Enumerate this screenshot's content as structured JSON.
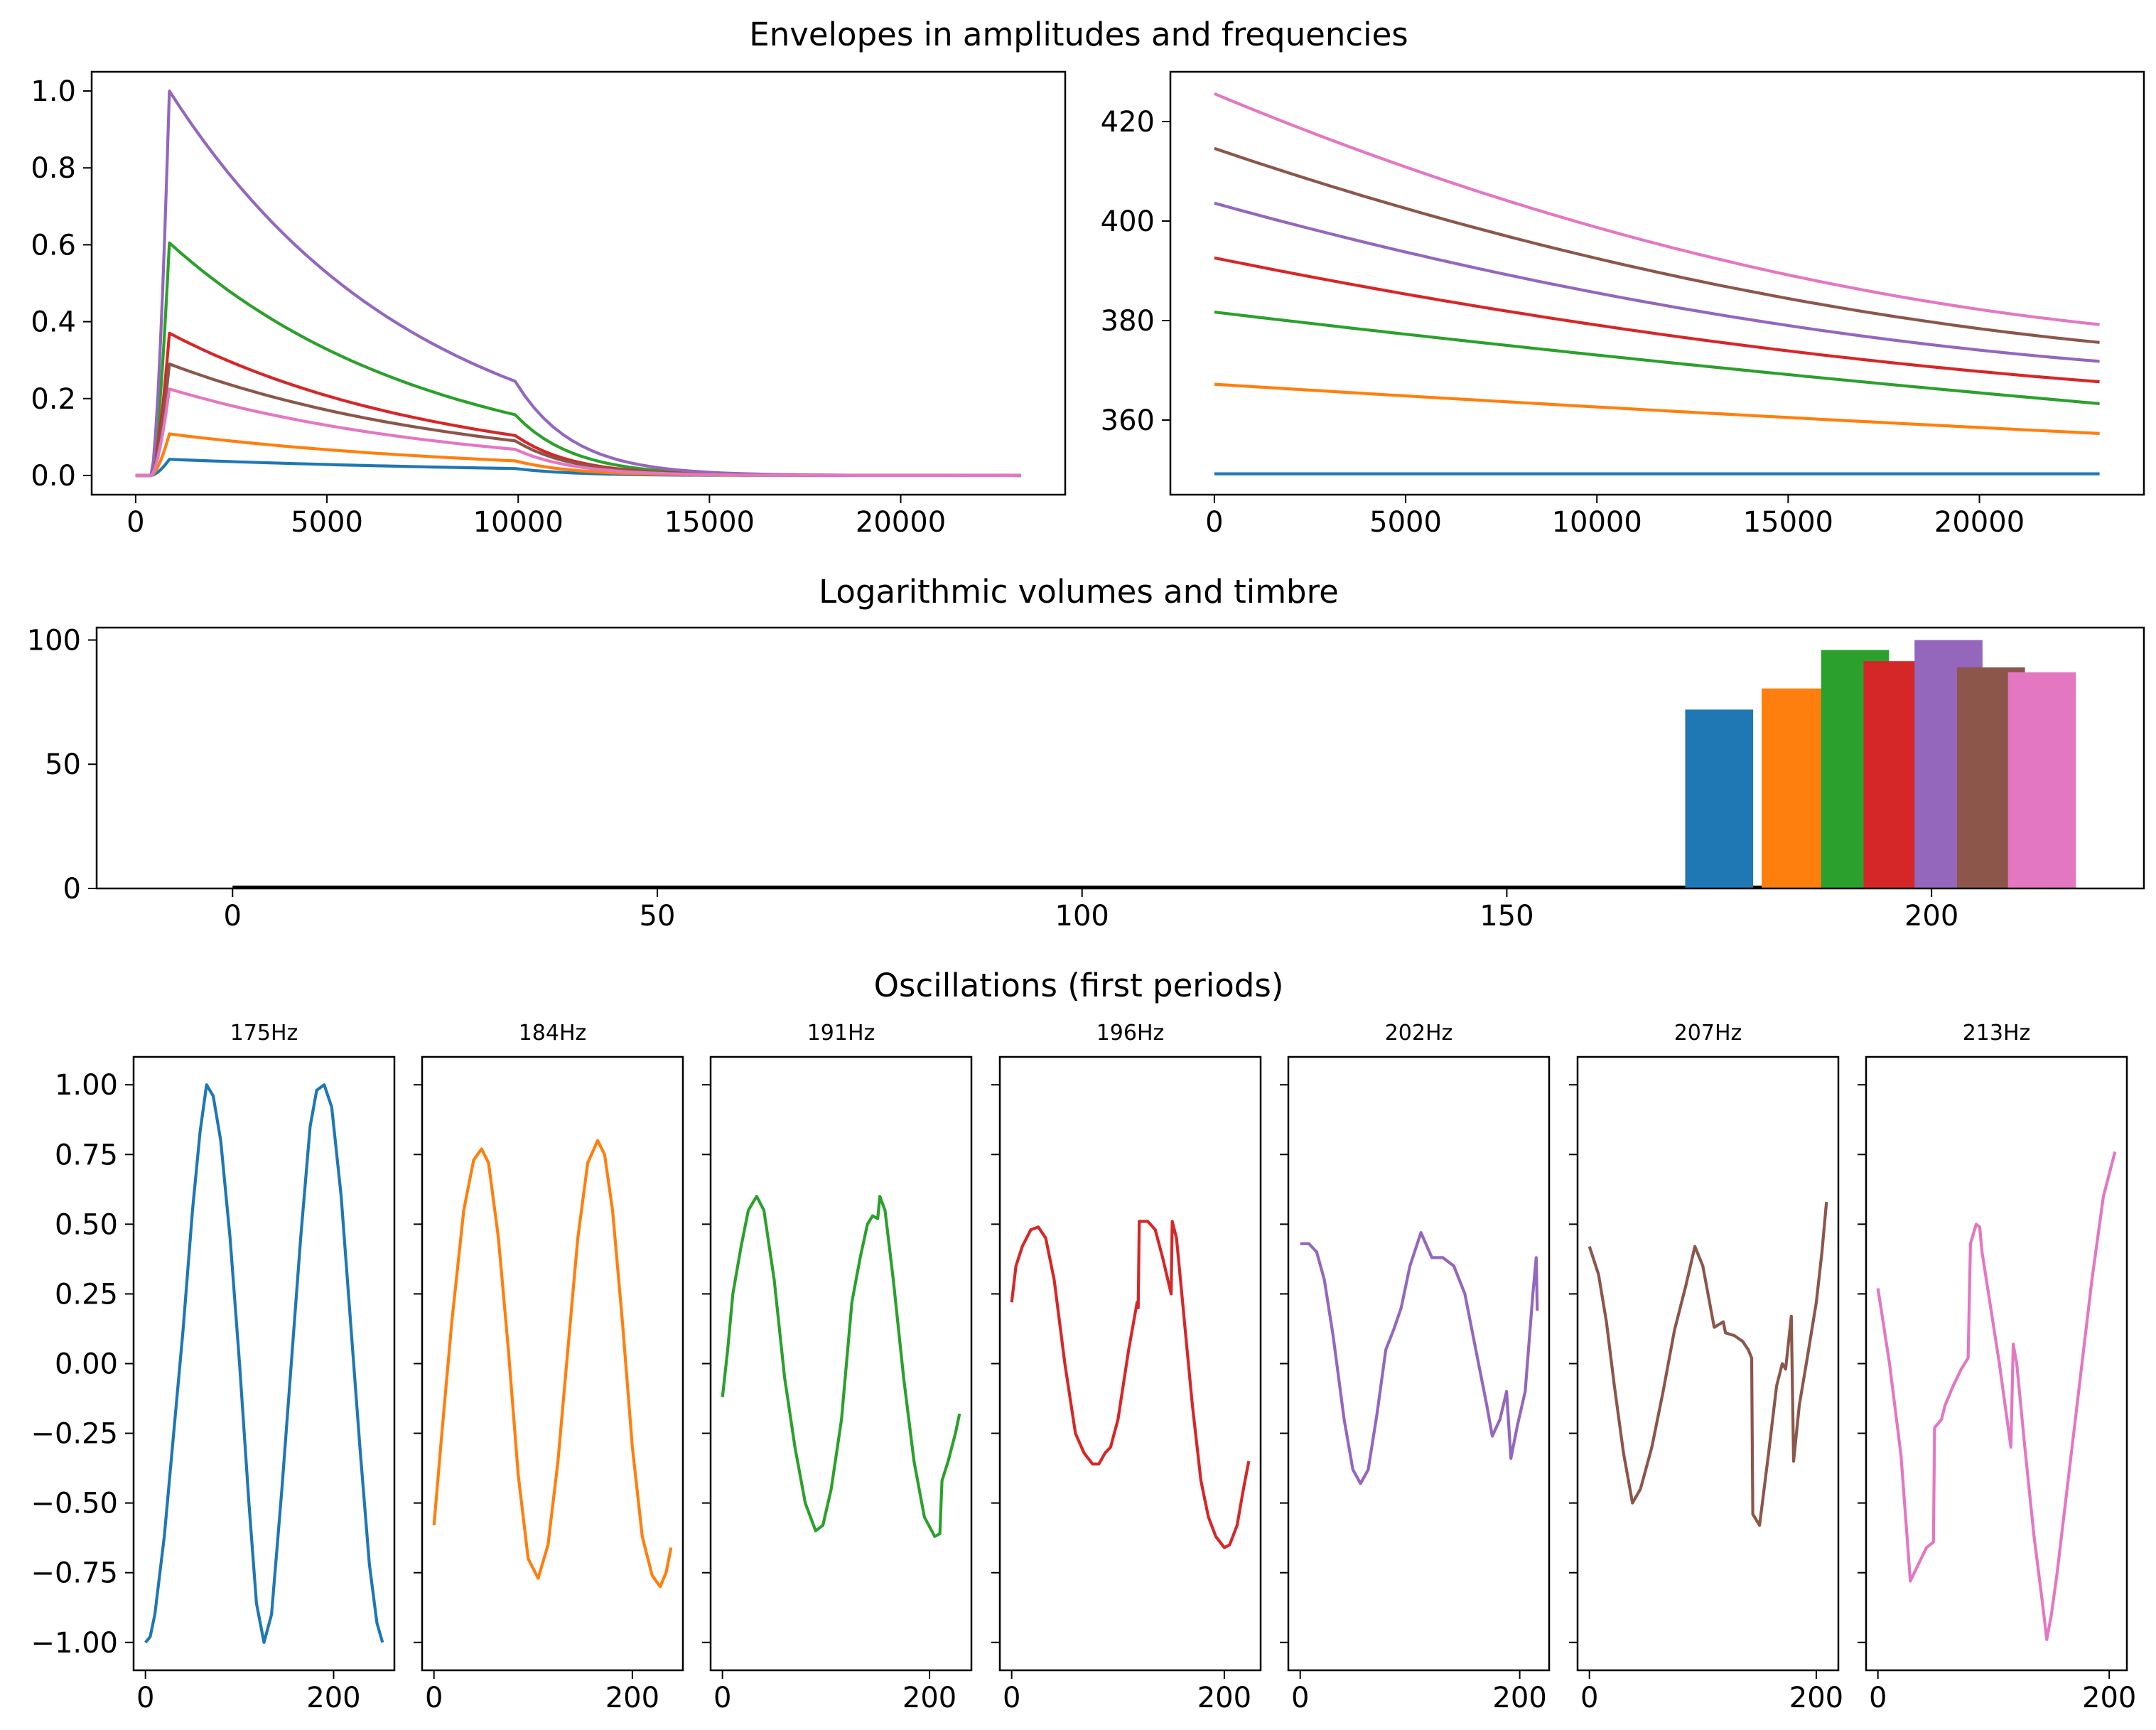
{
  "colors": [
    "#1f77b4",
    "#ff7f0e",
    "#2ca02c",
    "#d62728",
    "#9467bd",
    "#8c564b",
    "#e377c2"
  ],
  "titles": {
    "envelopes": "Envelopes in amplitudes and frequencies",
    "volumes": "Logarithmic volumes and timbre",
    "oscillations": "Oscillations (first periods)"
  },
  "chart_data": [
    {
      "id": "amplitude_envelopes",
      "type": "line",
      "xlim": [
        -1150,
        24300
      ],
      "ylim": [
        -0.05,
        1.05
      ],
      "xticks": [
        0,
        5000,
        10000,
        15000,
        20000
      ],
      "yticks": [
        0.0,
        0.2,
        0.4,
        0.6,
        0.8,
        1.0
      ],
      "ytick_labels": [
        "0.0",
        "0.2",
        "0.4",
        "0.6",
        "0.8",
        "1.0"
      ],
      "attack_start": 400,
      "attack_end": 882,
      "release_start": 9920,
      "x_end": 23140,
      "peaks": [
        0.042,
        0.108,
        0.605,
        0.37,
        1.0,
        0.29,
        0.225
      ],
      "release_levels": [
        0.018,
        0.038,
        0.158,
        0.104,
        0.245,
        0.09,
        0.068
      ]
    },
    {
      "id": "frequency_envelopes",
      "type": "line",
      "xlim": [
        -1150,
        24300
      ],
      "ylim": [
        345,
        430
      ],
      "xticks": [
        0,
        5000,
        10000,
        15000,
        20000
      ],
      "yticks": [
        360,
        380,
        400,
        420
      ],
      "x_end": 23140,
      "series_start": [
        349.2,
        367.2,
        381.7,
        392.6,
        403.6,
        414.6,
        425.6
      ],
      "series_end": [
        349.2,
        357.3,
        363.3,
        367.7,
        371.8,
        375.6,
        379.2
      ],
      "curvature": [
        0,
        0.12,
        0.15,
        0.45,
        0.55,
        0.55,
        0.6
      ]
    },
    {
      "id": "log_volumes",
      "type": "bar",
      "xlim": [
        -16,
        225
      ],
      "ylim": [
        0,
        105
      ],
      "xticks": [
        0,
        50,
        100,
        150,
        200
      ],
      "yticks": [
        0,
        50,
        100
      ],
      "categories": [
        175,
        184,
        191,
        196,
        202,
        207,
        213
      ],
      "values": [
        72,
        80.5,
        96,
        91.5,
        100,
        89,
        87
      ],
      "width": 8
    },
    {
      "id": "oscillations",
      "type": "line",
      "ylim": [
        -1.1,
        1.1
      ],
      "yticks": [
        -1.0,
        -0.75,
        -0.5,
        -0.25,
        0.0,
        0.25,
        0.5,
        0.75,
        1.0
      ],
      "ytick_labels": [
        "−1.00",
        "−0.75",
        "−0.50",
        "−0.25",
        "0.00",
        "0.25",
        "0.50",
        "0.75",
        "1.00"
      ],
      "xticks": [
        0,
        200
      ],
      "panels": [
        {
          "title": "175Hz",
          "xmax": 252,
          "points": [
            [
              0,
              -1.0
            ],
            [
              5,
              -0.98
            ],
            [
              10,
              -0.9
            ],
            [
              20,
              -0.62
            ],
            [
              30,
              -0.25
            ],
            [
              40,
              0.12
            ],
            [
              50,
              0.55
            ],
            [
              58,
              0.83
            ],
            [
              65,
              1.0
            ],
            [
              72,
              0.96
            ],
            [
              80,
              0.8
            ],
            [
              90,
              0.45
            ],
            [
              100,
              0.0
            ],
            [
              110,
              -0.5
            ],
            [
              118,
              -0.86
            ],
            [
              126,
              -1.0
            ],
            [
              134,
              -0.9
            ],
            [
              145,
              -0.45
            ],
            [
              155,
              0.0
            ],
            [
              165,
              0.45
            ],
            [
              175,
              0.85
            ],
            [
              182,
              0.98
            ],
            [
              190,
              1.0
            ],
            [
              198,
              0.92
            ],
            [
              208,
              0.6
            ],
            [
              218,
              0.15
            ],
            [
              228,
              -0.3
            ],
            [
              238,
              -0.72
            ],
            [
              246,
              -0.93
            ],
            [
              252,
              -1.0
            ]
          ]
        },
        {
          "title": "184Hz",
          "xmax": 239,
          "points": [
            [
              0,
              -0.58
            ],
            [
              8,
              -0.25
            ],
            [
              18,
              0.15
            ],
            [
              30,
              0.55
            ],
            [
              40,
              0.73
            ],
            [
              48,
              0.77
            ],
            [
              55,
              0.72
            ],
            [
              65,
              0.45
            ],
            [
              75,
              0.05
            ],
            [
              85,
              -0.4
            ],
            [
              95,
              -0.7
            ],
            [
              105,
              -0.77
            ],
            [
              115,
              -0.65
            ],
            [
              125,
              -0.35
            ],
            [
              135,
              0.05
            ],
            [
              145,
              0.45
            ],
            [
              155,
              0.72
            ],
            [
              165,
              0.8
            ],
            [
              172,
              0.75
            ],
            [
              180,
              0.55
            ],
            [
              190,
              0.15
            ],
            [
              200,
              -0.3
            ],
            [
              210,
              -0.62
            ],
            [
              220,
              -0.76
            ],
            [
              228,
              -0.8
            ],
            [
              234,
              -0.75
            ],
            [
              239,
              -0.66
            ]
          ]
        },
        {
          "title": "191Hz",
          "xmax": 229,
          "points": [
            [
              0,
              -0.12
            ],
            [
              5,
              0.05
            ],
            [
              10,
              0.25
            ],
            [
              18,
              0.42
            ],
            [
              25,
              0.55
            ],
            [
              33,
              0.6
            ],
            [
              40,
              0.55
            ],
            [
              50,
              0.3
            ],
            [
              60,
              -0.05
            ],
            [
              70,
              -0.3
            ],
            [
              80,
              -0.5
            ],
            [
              90,
              -0.6
            ],
            [
              97,
              -0.58
            ],
            [
              105,
              -0.45
            ],
            [
              115,
              -0.2
            ],
            [
              125,
              0.22
            ],
            [
              133,
              0.38
            ],
            [
              140,
              0.5
            ],
            [
              145,
              0.53
            ],
            [
              150,
              0.52
            ],
            [
              152,
              0.6
            ],
            [
              157,
              0.55
            ],
            [
              165,
              0.3
            ],
            [
              175,
              -0.05
            ],
            [
              185,
              -0.35
            ],
            [
              195,
              -0.55
            ],
            [
              205,
              -0.62
            ],
            [
              210,
              -0.61
            ],
            [
              212,
              -0.42
            ],
            [
              218,
              -0.35
            ],
            [
              225,
              -0.25
            ],
            [
              229,
              -0.18
            ]
          ]
        },
        {
          "title": "196Hz",
          "xmax": 223,
          "points": [
            [
              0,
              0.22
            ],
            [
              4,
              0.35
            ],
            [
              10,
              0.42
            ],
            [
              18,
              0.48
            ],
            [
              25,
              0.49
            ],
            [
              32,
              0.45
            ],
            [
              40,
              0.3
            ],
            [
              50,
              0.0
            ],
            [
              60,
              -0.25
            ],
            [
              68,
              -0.32
            ],
            [
              76,
              -0.36
            ],
            [
              82,
              -0.36
            ],
            [
              88,
              -0.32
            ],
            [
              93,
              -0.3
            ],
            [
              100,
              -0.2
            ],
            [
              110,
              0.05
            ],
            [
              118,
              0.22
            ],
            [
              119,
              0.2
            ],
            [
              120,
              0.51
            ],
            [
              128,
              0.51
            ],
            [
              135,
              0.48
            ],
            [
              142,
              0.38
            ],
            [
              150,
              0.25
            ],
            [
              151,
              0.51
            ],
            [
              155,
              0.45
            ],
            [
              160,
              0.25
            ],
            [
              165,
              0.05
            ],
            [
              170,
              -0.15
            ],
            [
              178,
              -0.42
            ],
            [
              185,
              -0.55
            ],
            [
              192,
              -0.62
            ],
            [
              200,
              -0.66
            ],
            [
              205,
              -0.65
            ],
            [
              212,
              -0.58
            ],
            [
              218,
              -0.45
            ],
            [
              223,
              -0.35
            ]
          ]
        },
        {
          "title": "202Hz",
          "xmax": 216,
          "points": [
            [
              0,
              0.43
            ],
            [
              8,
              0.43
            ],
            [
              15,
              0.4
            ],
            [
              22,
              0.3
            ],
            [
              30,
              0.1
            ],
            [
              40,
              -0.2
            ],
            [
              48,
              -0.38
            ],
            [
              55,
              -0.43
            ],
            [
              62,
              -0.38
            ],
            [
              70,
              -0.18
            ],
            [
              78,
              0.05
            ],
            [
              85,
              0.12
            ],
            [
              92,
              0.2
            ],
            [
              100,
              0.35
            ],
            [
              110,
              0.47
            ],
            [
              120,
              0.38
            ],
            [
              130,
              0.38
            ],
            [
              140,
              0.35
            ],
            [
              150,
              0.25
            ],
            [
              160,
              0.05
            ],
            [
              170,
              -0.15
            ],
            [
              175,
              -0.26
            ],
            [
              182,
              -0.2
            ],
            [
              188,
              -0.1
            ],
            [
              192,
              -0.34
            ],
            [
              198,
              -0.22
            ],
            [
              205,
              -0.1
            ],
            [
              212,
              0.25
            ],
            [
              215,
              0.38
            ],
            [
              216,
              0.19
            ]
          ]
        },
        {
          "title": "207Hz",
          "xmax": 209,
          "points": [
            [
              0,
              0.42
            ],
            [
              8,
              0.32
            ],
            [
              15,
              0.15
            ],
            [
              22,
              -0.08
            ],
            [
              30,
              -0.32
            ],
            [
              38,
              -0.5
            ],
            [
              45,
              -0.45
            ],
            [
              55,
              -0.3
            ],
            [
              65,
              -0.1
            ],
            [
              75,
              0.12
            ],
            [
              85,
              0.28
            ],
            [
              93,
              0.42
            ],
            [
              100,
              0.35
            ],
            [
              110,
              0.13
            ],
            [
              118,
              0.15
            ],
            [
              120,
              0.11
            ],
            [
              128,
              0.1
            ],
            [
              135,
              0.08
            ],
            [
              140,
              0.05
            ],
            [
              143,
              0.02
            ],
            [
              144,
              -0.54
            ],
            [
              150,
              -0.58
            ],
            [
              158,
              -0.32
            ],
            [
              165,
              -0.08
            ],
            [
              170,
              0.0
            ],
            [
              173,
              -0.02
            ],
            [
              178,
              0.17
            ],
            [
              180,
              -0.35
            ],
            [
              185,
              -0.15
            ],
            [
              192,
              0.02
            ],
            [
              200,
              0.22
            ],
            [
              205,
              0.4
            ],
            [
              209,
              0.58
            ]
          ]
        },
        {
          "title": "213Hz",
          "xmax": 205,
          "points": [
            [
              0,
              0.27
            ],
            [
              10,
              0.0
            ],
            [
              20,
              -0.33
            ],
            [
              28,
              -0.78
            ],
            [
              35,
              -0.72
            ],
            [
              42,
              -0.66
            ],
            [
              48,
              -0.64
            ],
            [
              49,
              -0.23
            ],
            [
              55,
              -0.2
            ],
            [
              58,
              -0.15
            ],
            [
              65,
              -0.08
            ],
            [
              72,
              -0.02
            ],
            [
              78,
              0.02
            ],
            [
              80,
              0.43
            ],
            [
              85,
              0.5
            ],
            [
              88,
              0.49
            ],
            [
              90,
              0.4
            ],
            [
              105,
              0.0
            ],
            [
              115,
              -0.3
            ],
            [
              117,
              0.07
            ],
            [
              120,
              0.0
            ],
            [
              127,
              -0.3
            ],
            [
              135,
              -0.62
            ],
            [
              142,
              -0.85
            ],
            [
              146,
              -0.99
            ],
            [
              150,
              -0.9
            ],
            [
              155,
              -0.75
            ],
            [
              165,
              -0.4
            ],
            [
              175,
              -0.05
            ],
            [
              185,
              0.3
            ],
            [
              195,
              0.6
            ],
            [
              205,
              0.76
            ]
          ]
        }
      ]
    }
  ]
}
